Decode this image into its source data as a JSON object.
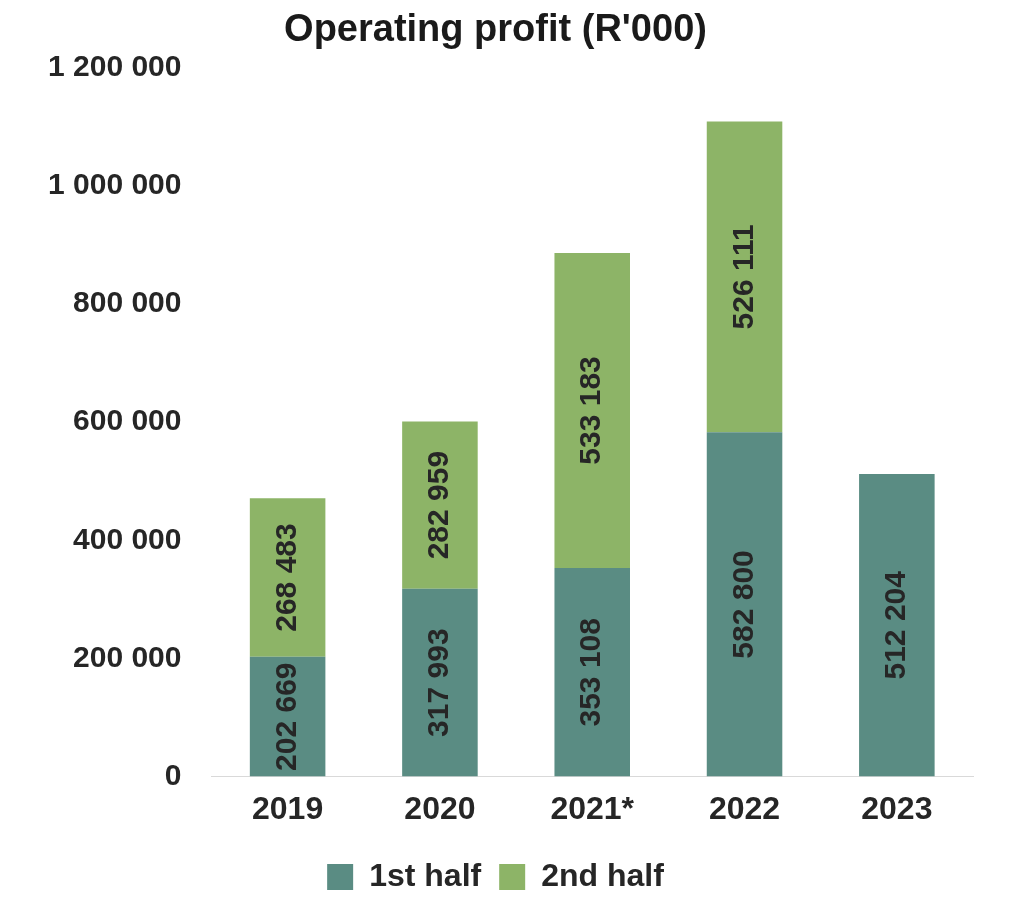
{
  "chart_data": {
    "type": "bar",
    "title": "Operating profit (R'000)",
    "categories": [
      "2019",
      "2020",
      "2021*",
      "2022",
      "2023"
    ],
    "stacked": true,
    "data_labels": true,
    "legend": "bottom",
    "grid": false,
    "ylim": [
      0,
      1200000
    ],
    "yticks": [
      0,
      200000,
      400000,
      600000,
      800000,
      1000000,
      1200000
    ],
    "series": [
      {
        "name": "1st half",
        "color": "#5a8c83",
        "values": [
          202669,
          317993,
          353108,
          582800,
          512204
        ]
      },
      {
        "name": "2nd half",
        "color": "#8db467",
        "values": [
          268483,
          282959,
          533183,
          526111,
          null
        ]
      }
    ]
  }
}
